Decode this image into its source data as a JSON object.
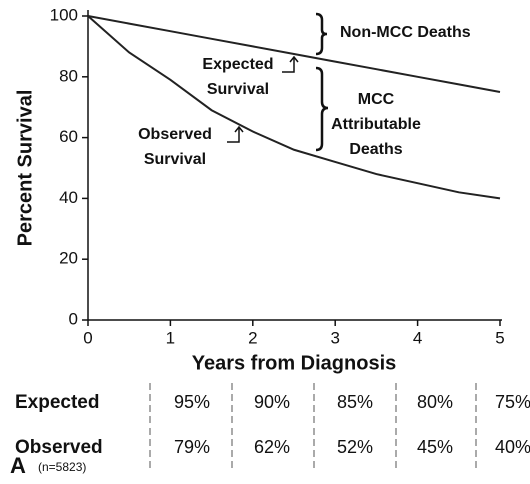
{
  "chart_data": {
    "type": "line",
    "x": [
      0,
      0.5,
      1,
      1.5,
      2,
      2.5,
      3,
      3.5,
      4,
      4.5,
      5
    ],
    "series": [
      {
        "name": "Expected",
        "color": "#222222",
        "values": [
          100,
          97.5,
          95,
          92.5,
          90,
          87.5,
          85,
          82.5,
          80,
          77.5,
          75
        ]
      },
      {
        "name": "Observed",
        "color": "#222222",
        "values": [
          100,
          88,
          79,
          69,
          62,
          56,
          52,
          48,
          45,
          42,
          40
        ]
      }
    ],
    "xlabel": "Years from Diagnosis",
    "ylabel": "Percent Survival",
    "xlim": [
      0,
      5
    ],
    "xticks": [
      0,
      1,
      2,
      3,
      4,
      5
    ],
    "ylim": [
      0,
      100
    ],
    "yticks": [
      0,
      20,
      40,
      60,
      80,
      100
    ],
    "annotations": [
      [
        "Non-MCC Deaths"
      ],
      [
        "Expected",
        "Survival"
      ],
      [
        "Observed",
        "Survival"
      ],
      [
        "MCC",
        "Attributable",
        "Deaths"
      ]
    ]
  },
  "table": {
    "rows": [
      {
        "label": "Expected",
        "cells": [
          "95%",
          "90%",
          "85%",
          "80%",
          "75%"
        ]
      },
      {
        "label": "Observed",
        "note": "(n=5823)",
        "cells": [
          "79%",
          "62%",
          "52%",
          "45%",
          "40%"
        ]
      }
    ]
  },
  "panel_label": "A"
}
